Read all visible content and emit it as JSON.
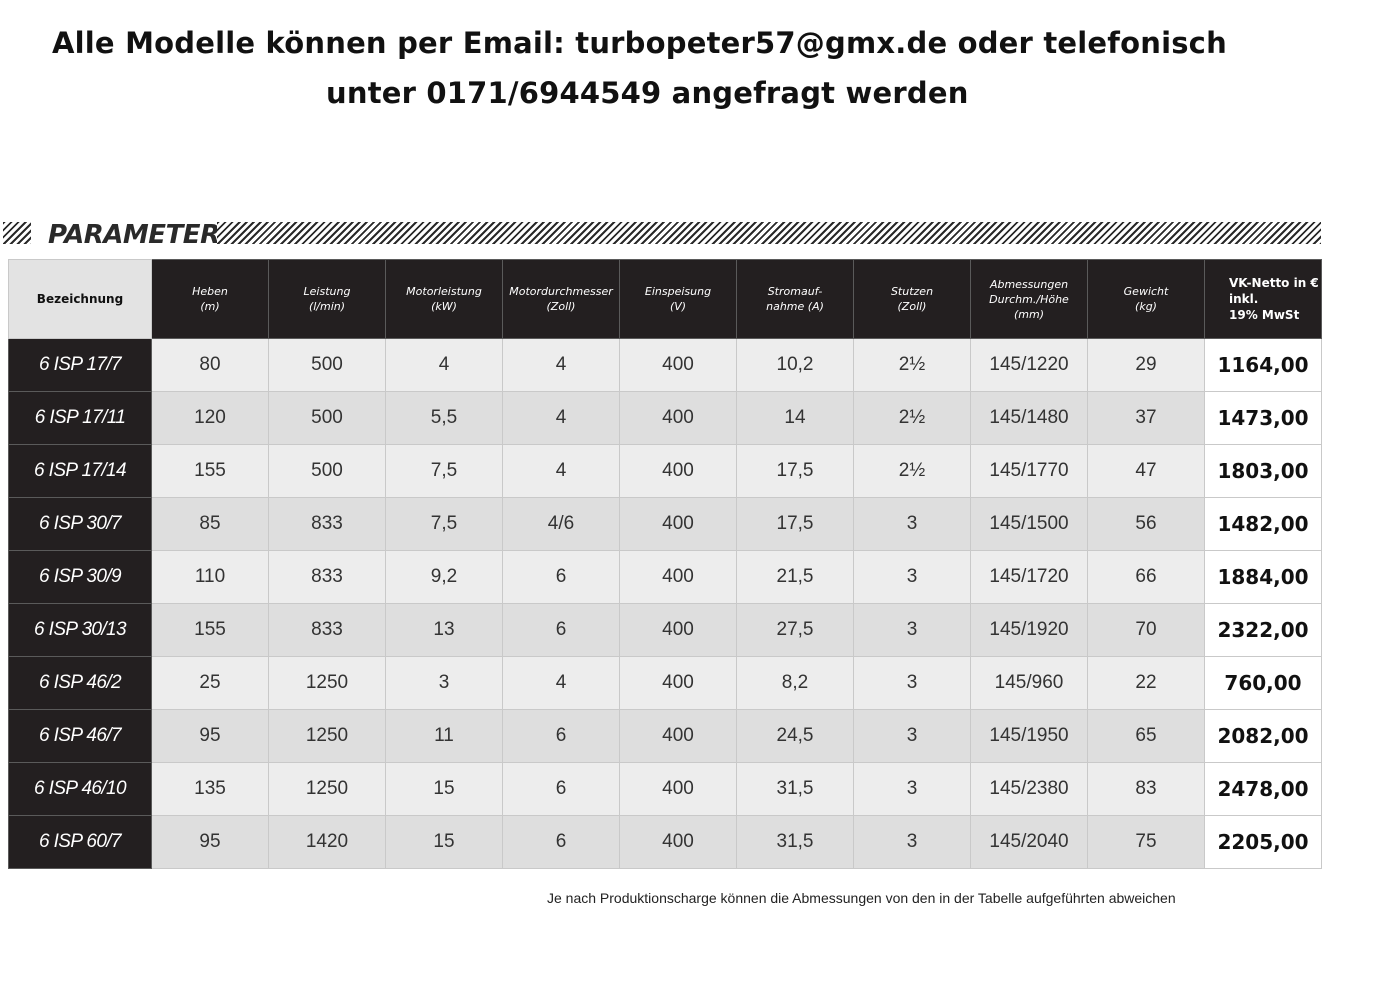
{
  "header": {
    "line1": "Alle Modelle können per Email: turbopeter57@gmx.de  oder telefonisch",
    "line2": "unter 0171/6944549 angefragt werden"
  },
  "section_title": "PARAMETER",
  "table": {
    "columns": [
      {
        "label": "Bezeichnung",
        "unit": ""
      },
      {
        "label": "Heben",
        "unit": "(m)"
      },
      {
        "label": "Leistung",
        "unit": "(l/min)"
      },
      {
        "label": "Motorleistung",
        "unit": "(kW)"
      },
      {
        "label": "Motordurchmesser",
        "unit": "(Zoll)"
      },
      {
        "label": "Einspeisung",
        "unit": "(V)"
      },
      {
        "label": "Stromauf-",
        "label2": "nahme (A)",
        "unit": ""
      },
      {
        "label": "Stutzen",
        "unit": "(Zoll)"
      },
      {
        "label": "Abmessungen",
        "label2": "Durchm./Höhe",
        "unit": "(mm)"
      },
      {
        "label": "Gewicht",
        "unit": "(kg)"
      },
      {
        "label": "VK-Netto  in €",
        "label2": "inkl.",
        "unit": "19% MwSt"
      }
    ],
    "rows": [
      {
        "name": "6 ISP 17/7",
        "heben": "80",
        "leistung": "500",
        "motorleistung": "4",
        "motordurchmesser": "4",
        "einspeisung": "400",
        "strom": "10,2",
        "stutzen": "2½",
        "abmessungen": "145/1220",
        "gewicht": "29",
        "preis": "1164,00"
      },
      {
        "name": "6 ISP 17/11",
        "heben": "120",
        "leistung": "500",
        "motorleistung": "5,5",
        "motordurchmesser": "4",
        "einspeisung": "400",
        "strom": "14",
        "stutzen": "2½",
        "abmessungen": "145/1480",
        "gewicht": "37",
        "preis": "1473,00"
      },
      {
        "name": "6 ISP 17/14",
        "heben": "155",
        "leistung": "500",
        "motorleistung": "7,5",
        "motordurchmesser": "4",
        "einspeisung": "400",
        "strom": "17,5",
        "stutzen": "2½",
        "abmessungen": "145/1770",
        "gewicht": "47",
        "preis": "1803,00"
      },
      {
        "name": "6 ISP 30/7",
        "heben": "85",
        "leistung": "833",
        "motorleistung": "7,5",
        "motordurchmesser": "4/6",
        "einspeisung": "400",
        "strom": "17,5",
        "stutzen": "3",
        "abmessungen": "145/1500",
        "gewicht": "56",
        "preis": "1482,00"
      },
      {
        "name": "6 ISP 30/9",
        "heben": "110",
        "leistung": "833",
        "motorleistung": "9,2",
        "motordurchmesser": "6",
        "einspeisung": "400",
        "strom": "21,5",
        "stutzen": "3",
        "abmessungen": "145/1720",
        "gewicht": "66",
        "preis": "1884,00"
      },
      {
        "name": "6 ISP 30/13",
        "heben": "155",
        "leistung": "833",
        "motorleistung": "13",
        "motordurchmesser": "6",
        "einspeisung": "400",
        "strom": "27,5",
        "stutzen": "3",
        "abmessungen": "145/1920",
        "gewicht": "70",
        "preis": "2322,00"
      },
      {
        "name": "6 ISP 46/2",
        "heben": "25",
        "leistung": "1250",
        "motorleistung": "3",
        "motordurchmesser": "4",
        "einspeisung": "400",
        "strom": "8,2",
        "stutzen": "3",
        "abmessungen": "145/960",
        "gewicht": "22",
        "preis": "760,00"
      },
      {
        "name": "6 ISP 46/7",
        "heben": "95",
        "leistung": "1250",
        "motorleistung": "11",
        "motordurchmesser": "6",
        "einspeisung": "400",
        "strom": "24,5",
        "stutzen": "3",
        "abmessungen": "145/1950",
        "gewicht": "65",
        "preis": "2082,00"
      },
      {
        "name": "6 ISP 46/10",
        "heben": "135",
        "leistung": "1250",
        "motorleistung": "15",
        "motordurchmesser": "6",
        "einspeisung": "400",
        "strom": "31,5",
        "stutzen": "3",
        "abmessungen": "145/2380",
        "gewicht": "83",
        "preis": "2478,00"
      },
      {
        "name": "6 ISP 60/7",
        "heben": "95",
        "leistung": "1420",
        "motorleistung": "15",
        "motordurchmesser": "6",
        "einspeisung": "400",
        "strom": "31,5",
        "stutzen": "3",
        "abmessungen": "145/2040",
        "gewicht": "75",
        "preis": "2205,00"
      }
    ]
  },
  "footnote": "Je nach Produktionscharge können die Abmessungen von den in der Tabelle aufgeführten abweichen"
}
